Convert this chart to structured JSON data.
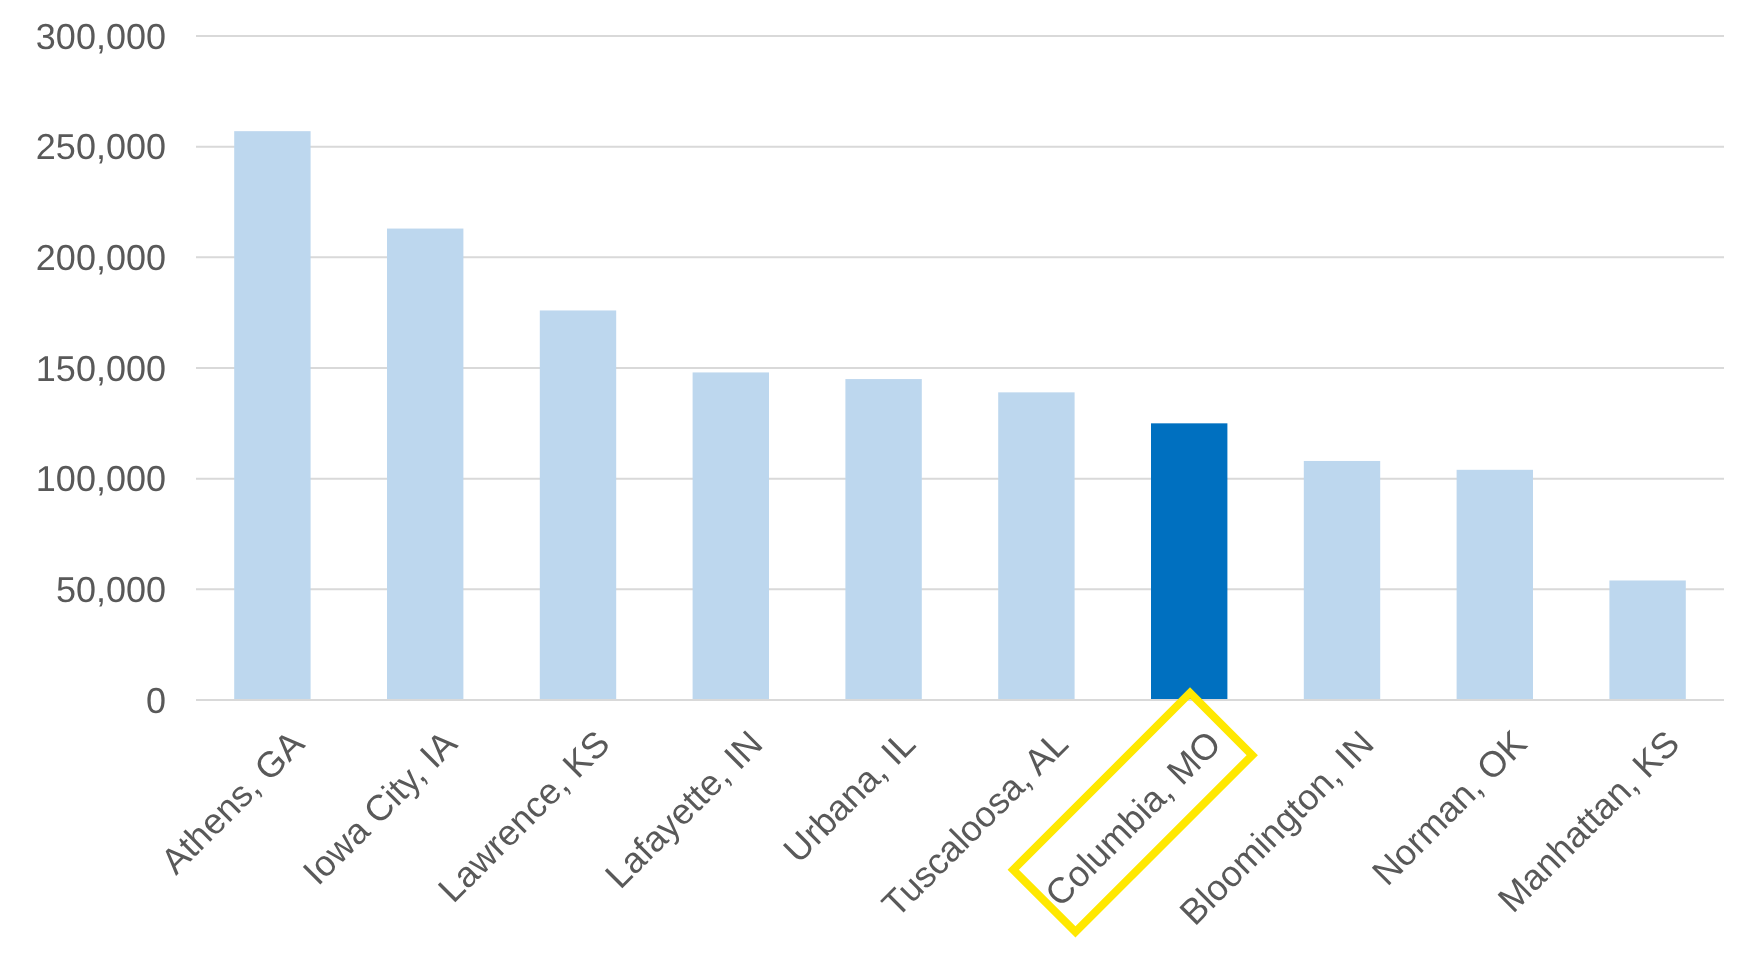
{
  "chart_data": {
    "type": "bar",
    "categories": [
      "Athens, GA",
      "Iowa City, IA",
      "Lawrence, KS",
      "Lafayette, IN",
      "Urbana, IL",
      "Tuscaloosa, AL",
      "Columbia, MO",
      "Bloomington, IN",
      "Norman, OK",
      "Manhattan, KS"
    ],
    "values": [
      257000,
      213000,
      176000,
      148000,
      145000,
      139000,
      125000,
      108000,
      104000,
      54000
    ],
    "colors": [
      "#bdd7ee",
      "#bdd7ee",
      "#bdd7ee",
      "#bdd7ee",
      "#bdd7ee",
      "#bdd7ee",
      "#0070c0",
      "#bdd7ee",
      "#bdd7ee",
      "#bdd7ee"
    ],
    "ylim": [
      0,
      300000
    ],
    "yticks": [
      {
        "value": 0,
        "label": "0"
      },
      {
        "value": 50000,
        "label": "50,000"
      },
      {
        "value": 100000,
        "label": "100,000"
      },
      {
        "value": 150000,
        "label": "150,000"
      },
      {
        "value": 200000,
        "label": "200,000"
      },
      {
        "value": 250000,
        "label": "250,000"
      },
      {
        "value": 300000,
        "label": "300,000"
      }
    ],
    "grid": "y"
  }
}
